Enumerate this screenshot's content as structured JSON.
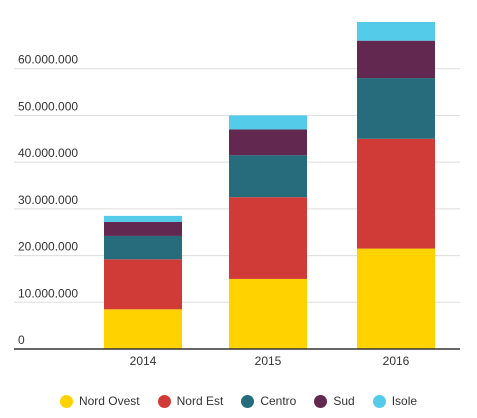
{
  "chart_data": {
    "type": "bar",
    "stacked": true,
    "categories": [
      "2014",
      "2015",
      "2016"
    ],
    "series": [
      {
        "name": "Nord Ovest",
        "color": "#ffd200",
        "values": [
          8500000,
          15000000,
          21500000
        ]
      },
      {
        "name": "Nord Est",
        "color": "#d13b37",
        "values": [
          10700000,
          17500000,
          23500000
        ]
      },
      {
        "name": "Centro",
        "color": "#276c7d",
        "values": [
          5000000,
          9000000,
          13000000
        ]
      },
      {
        "name": "Sud",
        "color": "#632850",
        "values": [
          3000000,
          5500000,
          8000000
        ]
      },
      {
        "name": "Isole",
        "color": "#54cbe8",
        "values": [
          1300000,
          3000000,
          4000000
        ]
      }
    ],
    "yticks": [
      0,
      10000000,
      20000000,
      30000000,
      40000000,
      50000000,
      60000000
    ],
    "ytick_labels": [
      "0",
      "10.000.000",
      "20.000.000",
      "30.000.000",
      "40.000.000",
      "50.000.000",
      "60.000.000"
    ],
    "ylim": [
      0,
      70000000
    ],
    "grid": true,
    "legend_position": "bottom"
  }
}
